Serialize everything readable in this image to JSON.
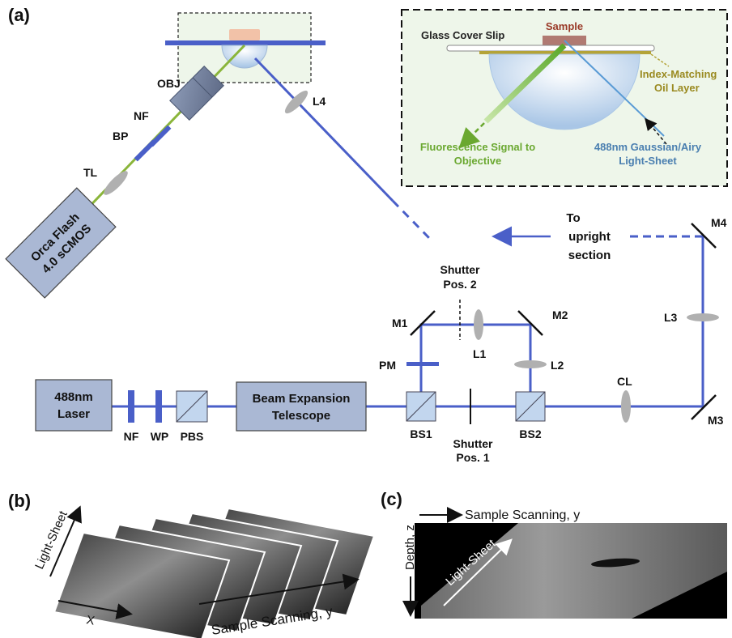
{
  "panels": {
    "a": "(a)",
    "b": "(b)",
    "c": "(c)"
  },
  "inset": {
    "cover_slip": "Glass Cover Slip",
    "sample": "Sample",
    "oil_line1": "Index-Matching",
    "oil_line2": "Oil Layer",
    "fluor_line1": "Fluorescence Signal to",
    "fluor_line2": "Objective",
    "sheet_line1": "488nm Gaussian/Airy",
    "sheet_line2": "Light-Sheet"
  },
  "boxes": {
    "laser_line1": "488nm",
    "laser_line2": "Laser",
    "bet_line1": "Beam Expansion",
    "bet_line2": "Telescope",
    "camera_line1": "Orca Flash",
    "camera_line2": "4.0 sCMOS"
  },
  "components": {
    "obj": "OBJ",
    "nf_top": "NF",
    "bp": "BP",
    "tl": "TL",
    "l4": "L4",
    "nf": "NF",
    "wp": "WP",
    "pbs": "PBS",
    "bs1": "BS1",
    "bs2": "BS2",
    "pm": "PM",
    "m1": "M1",
    "m2": "M2",
    "m3": "M3",
    "m4": "M4",
    "l1": "L1",
    "l2": "L2",
    "l3": "L3",
    "cl": "CL",
    "shutter1_line1": "Shutter",
    "shutter1_line2": "Pos. 1",
    "shutter2_line1": "Shutter",
    "shutter2_line2": "Pos. 2",
    "upright_line1": "To",
    "upright_line2": "upright",
    "upright_line3": "section"
  },
  "panel_b": {
    "axis_sheet": "Light-Sheet",
    "axis_x": "X",
    "axis_y": "Sample Scanning, y"
  },
  "panel_c": {
    "axis_y": "Sample Scanning, y",
    "axis_z": "Depth, z",
    "axis_sheet": "Light-Sheet"
  },
  "colors": {
    "beam": "#4a5fc8",
    "fluorescence": "#8ab53a",
    "box": "#aab8d4",
    "optic": "#b0b0b0",
    "inset_bg": "#eef6ea"
  }
}
